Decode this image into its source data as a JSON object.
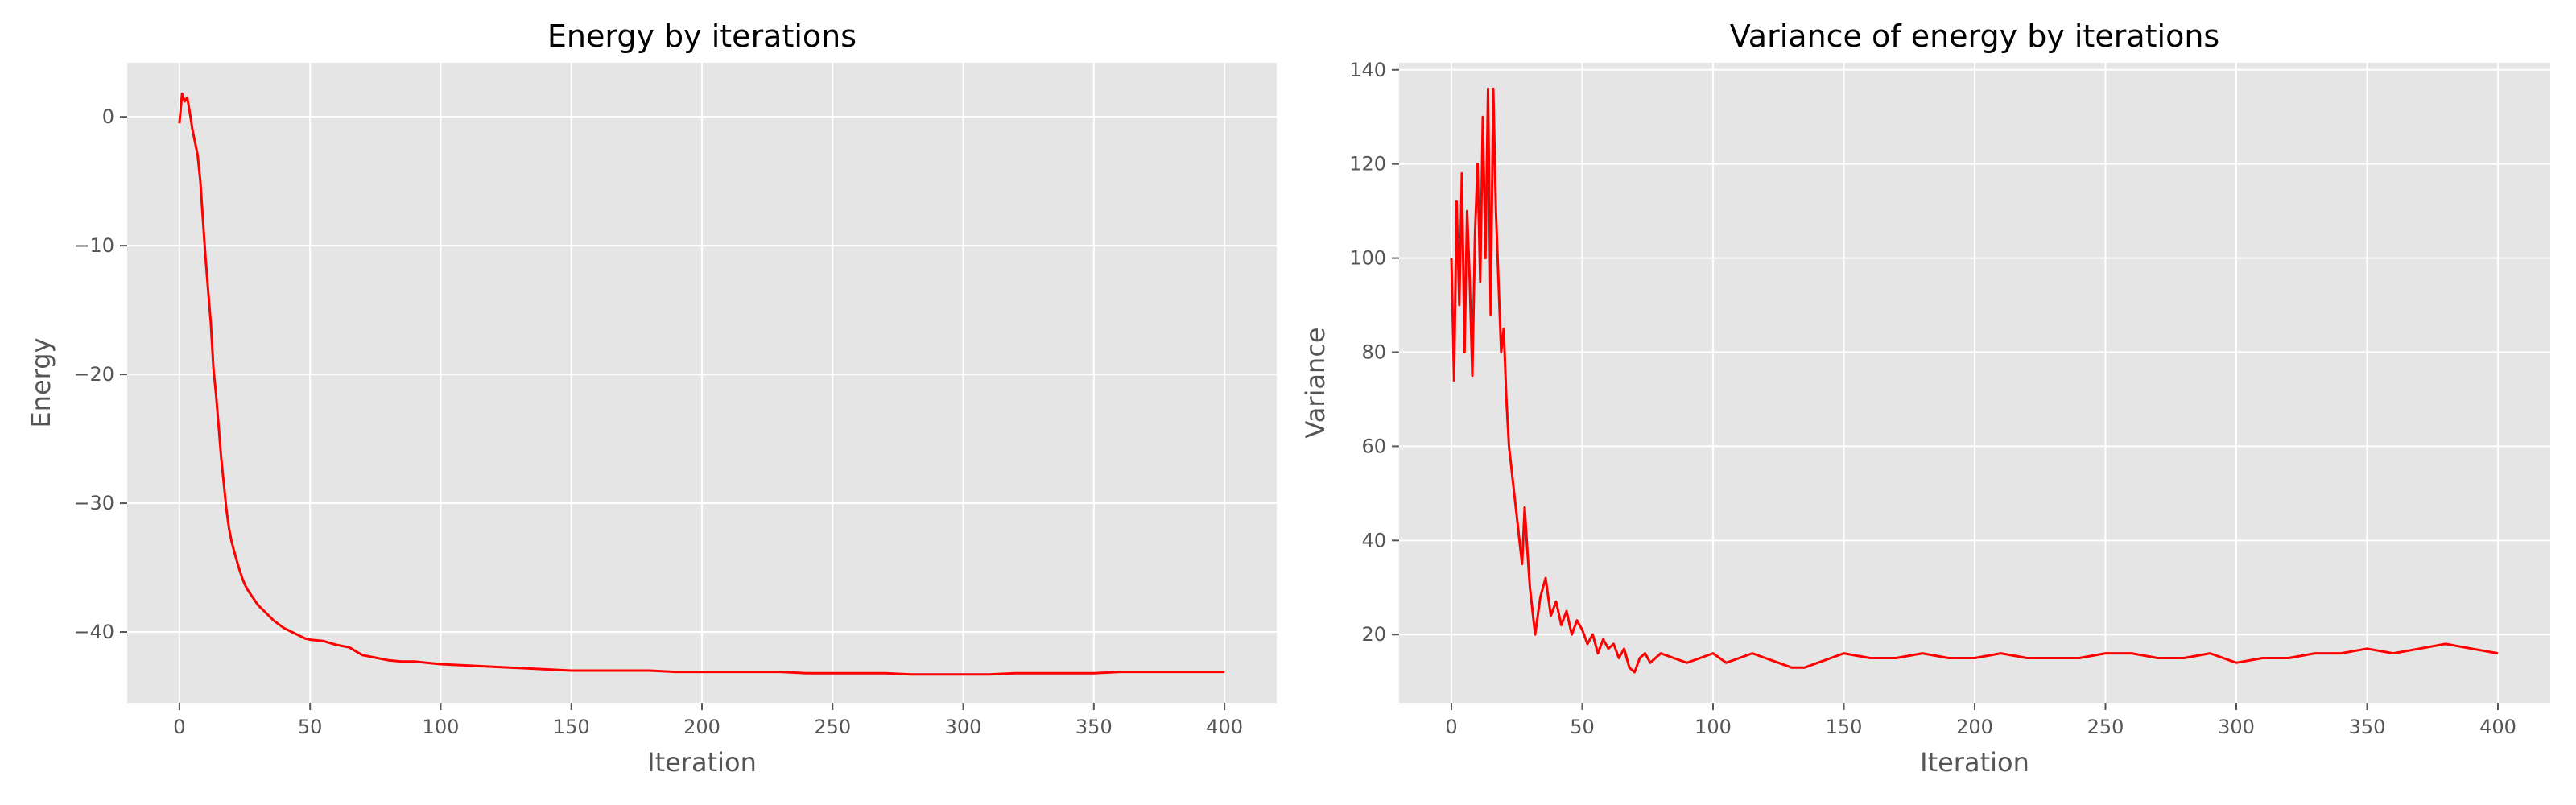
{
  "style": {
    "background": "#e5e5e5",
    "grid_color": "#ffffff",
    "line_color": "#ff0000",
    "text_color": "#555555",
    "title_color": "#000000"
  },
  "chart_data": [
    {
      "type": "line",
      "title": "Energy by iterations",
      "xlabel": "Iteration",
      "ylabel": "Energy",
      "xlim": [
        -20,
        420
      ],
      "ylim": [
        -45.5,
        4.2
      ],
      "xticks": [
        0,
        50,
        100,
        150,
        200,
        250,
        300,
        350,
        400
      ],
      "yticks": [
        0,
        -10,
        -20,
        -30,
        -40
      ],
      "ytick_labels": [
        "0",
        "−10",
        "−20",
        "−30",
        "−40"
      ],
      "grid": true,
      "series": [
        {
          "color": "#ff0000",
          "x": [
            0,
            1,
            2,
            3,
            4,
            5,
            6,
            7,
            8,
            9,
            10,
            11,
            12,
            13,
            14,
            15,
            16,
            17,
            18,
            19,
            20,
            21,
            22,
            23,
            24,
            25,
            26,
            27,
            28,
            29,
            30,
            32,
            34,
            36,
            38,
            40,
            42,
            44,
            46,
            48,
            50,
            55,
            60,
            65,
            70,
            75,
            80,
            85,
            90,
            95,
            100,
            110,
            120,
            130,
            140,
            150,
            160,
            170,
            180,
            190,
            200,
            210,
            220,
            230,
            240,
            250,
            260,
            270,
            280,
            290,
            300,
            310,
            320,
            330,
            340,
            350,
            360,
            370,
            380,
            390,
            400
          ],
          "values": [
            -0.5,
            1.8,
            1.2,
            1.5,
            0.3,
            -1.0,
            -2.0,
            -3.0,
            -5.0,
            -8.0,
            -11.0,
            -13.5,
            -16.0,
            -19.5,
            -21.5,
            -24.0,
            -26.5,
            -28.5,
            -30.5,
            -32.0,
            -33.0,
            -33.8,
            -34.5,
            -35.2,
            -35.8,
            -36.3,
            -36.7,
            -37.0,
            -37.3,
            -37.6,
            -37.9,
            -38.3,
            -38.7,
            -39.1,
            -39.4,
            -39.7,
            -39.9,
            -40.1,
            -40.3,
            -40.5,
            -40.6,
            -40.7,
            -41.0,
            -41.2,
            -41.8,
            -42.0,
            -42.2,
            -42.3,
            -42.3,
            -42.4,
            -42.5,
            -42.6,
            -42.7,
            -42.8,
            -42.9,
            -43.0,
            -43.0,
            -43.0,
            -43.0,
            -43.1,
            -43.1,
            -43.1,
            -43.1,
            -43.1,
            -43.2,
            -43.2,
            -43.2,
            -43.2,
            -43.3,
            -43.3,
            -43.3,
            -43.3,
            -43.2,
            -43.2,
            -43.2,
            -43.2,
            -43.1,
            -43.1,
            -43.1,
            -43.1,
            -43.1
          ]
        }
      ]
    },
    {
      "type": "line",
      "title": "Variance of energy by iterations",
      "xlabel": "Iteration",
      "ylabel": "Variance",
      "xlim": [
        -20,
        420
      ],
      "ylim": [
        5.5,
        141.5
      ],
      "xticks": [
        0,
        50,
        100,
        150,
        200,
        250,
        300,
        350,
        400
      ],
      "yticks": [
        20,
        40,
        60,
        80,
        100,
        120,
        140
      ],
      "ytick_labels": [
        "20",
        "40",
        "60",
        "80",
        "100",
        "120",
        "140"
      ],
      "grid": true,
      "series": [
        {
          "color": "#ff0000",
          "x": [
            0,
            1,
            2,
            3,
            4,
            5,
            6,
            7,
            8,
            9,
            10,
            11,
            12,
            13,
            14,
            15,
            16,
            17,
            18,
            19,
            20,
            21,
            22,
            23,
            24,
            25,
            26,
            27,
            28,
            29,
            30,
            32,
            34,
            36,
            38,
            40,
            42,
            44,
            46,
            48,
            50,
            52,
            54,
            56,
            58,
            60,
            62,
            64,
            66,
            68,
            70,
            72,
            74,
            76,
            78,
            80,
            85,
            90,
            95,
            100,
            105,
            110,
            115,
            120,
            125,
            130,
            135,
            140,
            145,
            150,
            160,
            170,
            180,
            190,
            200,
            210,
            220,
            230,
            240,
            250,
            260,
            270,
            280,
            290,
            300,
            310,
            320,
            330,
            340,
            350,
            360,
            370,
            380,
            390,
            400
          ],
          "values": [
            100,
            74,
            112,
            90,
            118,
            80,
            110,
            95,
            75,
            105,
            120,
            95,
            130,
            100,
            136,
            88,
            136,
            110,
            95,
            80,
            85,
            70,
            60,
            55,
            50,
            45,
            40,
            35,
            47,
            38,
            30,
            20,
            28,
            32,
            24,
            27,
            22,
            25,
            20,
            23,
            21,
            18,
            20,
            16,
            19,
            17,
            18,
            15,
            17,
            13,
            12,
            15,
            16,
            14,
            15,
            16,
            15,
            14,
            15,
            16,
            14,
            15,
            16,
            15,
            14,
            13,
            13,
            14,
            15,
            16,
            15,
            15,
            16,
            15,
            15,
            16,
            15,
            15,
            15,
            16,
            16,
            15,
            15,
            16,
            14,
            15,
            15,
            16,
            16,
            17,
            16,
            17,
            18,
            17,
            16
          ]
        }
      ]
    }
  ]
}
